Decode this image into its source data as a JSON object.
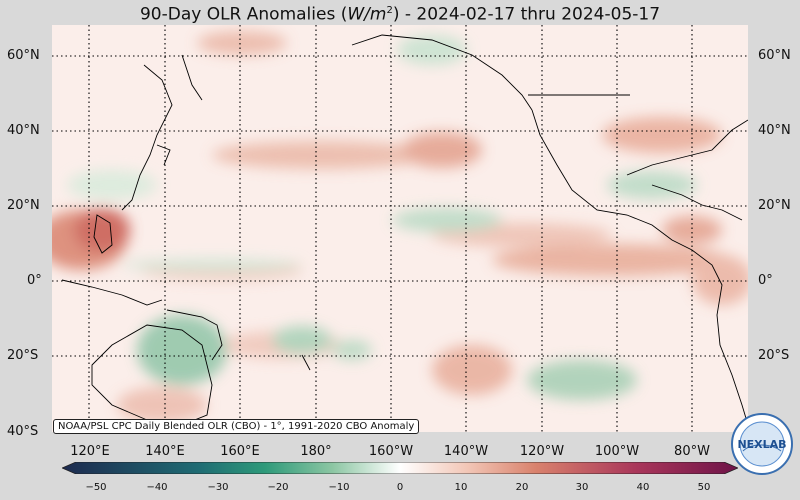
{
  "title": {
    "prefix": "90-Day OLR Anomalies (",
    "unit_main": "W/m",
    "unit_sup": "2",
    "suffix": ") - 2024-02-17 thru 2024-05-17"
  },
  "lat_labels": [
    "60°N",
    "40°N",
    "20°N",
    "0°",
    "20°S",
    "40°S"
  ],
  "lon_labels": [
    "120°E",
    "140°E",
    "160°E",
    "180°",
    "160°W",
    "140°W",
    "120°W",
    "100°W",
    "80°W"
  ],
  "credit": "NOAA/PSL CPC Daily Blended OLR (CBO) - 1°, 1991-2020 CBO Anomaly",
  "colorbar": {
    "ticks": [
      "−50",
      "−40",
      "−30",
      "−20",
      "−10",
      "0",
      "10",
      "20",
      "30",
      "40",
      "50"
    ],
    "range": [
      -50,
      50
    ],
    "colors": {
      "negative_far": "#1d2a4f",
      "negative_mid": "#2e9a7a",
      "neutral": "#ffffff",
      "positive_mid": "#d9826d",
      "positive_far": "#6e1348"
    }
  },
  "logo": {
    "text": "NEXLAB"
  }
}
